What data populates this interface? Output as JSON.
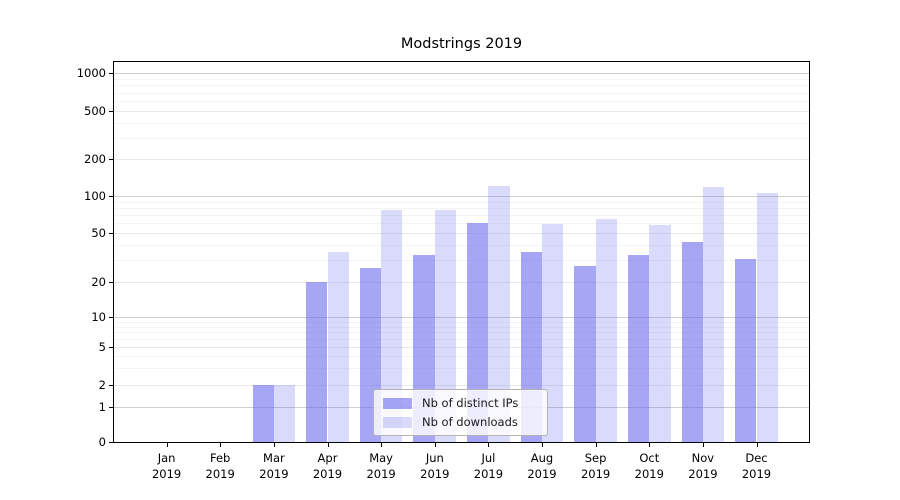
{
  "title": "Modstrings 2019",
  "legend": {
    "items": [
      {
        "label": "Nb of distinct IPs",
        "color": "rgba(102,102,238,0.58)"
      },
      {
        "label": "Nb of downloads",
        "color": "rgba(102,102,238,0.24)"
      }
    ]
  },
  "chart_data": {
    "type": "bar",
    "title": "Modstrings 2019",
    "categories": [
      "Jan 2019",
      "Feb 2019",
      "Mar 2019",
      "Apr 2019",
      "May 2019",
      "Jun 2019",
      "Jul 2019",
      "Aug 2019",
      "Sep 2019",
      "Oct 2019",
      "Nov 2019",
      "Dec 2019"
    ],
    "series": [
      {
        "name": "Nb of distinct IPs",
        "color": "rgba(102,102,238,0.58)",
        "values": [
          0,
          0,
          2,
          20,
          26,
          33,
          60,
          35,
          27,
          33,
          42,
          31
        ]
      },
      {
        "name": "Nb of downloads",
        "color": "rgba(102,102,238,0.24)",
        "values": [
          0,
          0,
          2,
          35,
          77,
          77,
          120,
          59,
          65,
          58,
          118,
          106
        ]
      }
    ],
    "xlabel": "",
    "ylabel": "",
    "yscale": "symlog",
    "y_ticks": [
      0,
      1,
      2,
      5,
      10,
      20,
      50,
      100,
      200,
      500,
      1000
    ],
    "y_minor_ticks": [
      3,
      4,
      6,
      7,
      8,
      9,
      30,
      40,
      60,
      70,
      80,
      90,
      300,
      400,
      600,
      700,
      800,
      900
    ],
    "ylim": [
      0,
      1260
    ],
    "grid": "both",
    "legend_position": "lower center",
    "grid_colors": {
      "decade": "#cfcfcf",
      "major": "#e9e9e9",
      "minor": "#f4f4f4"
    }
  }
}
